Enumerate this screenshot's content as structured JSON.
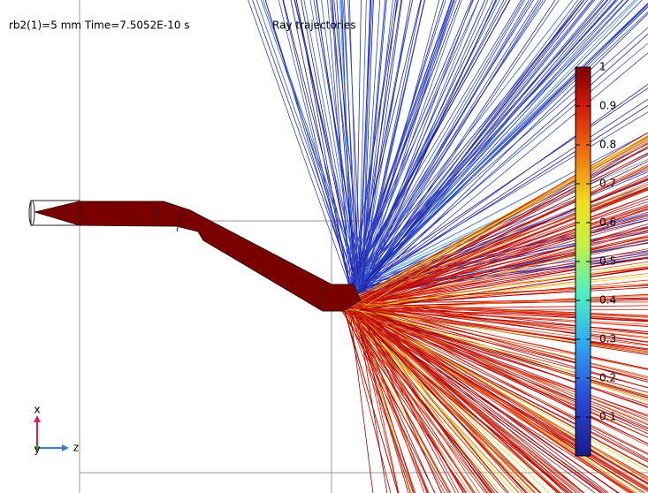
{
  "header": {
    "left": "rb2(1)=5 mm Time=7.5052E-10 s",
    "title": "Ray trajectories"
  },
  "colorbar": {
    "ticks": [
      1,
      0.9,
      0.8,
      0.7,
      0.6,
      0.5,
      0.4,
      0.3,
      0.2,
      0.1
    ]
  },
  "axes": {
    "x": "x",
    "y": "y",
    "z": "z"
  }
}
